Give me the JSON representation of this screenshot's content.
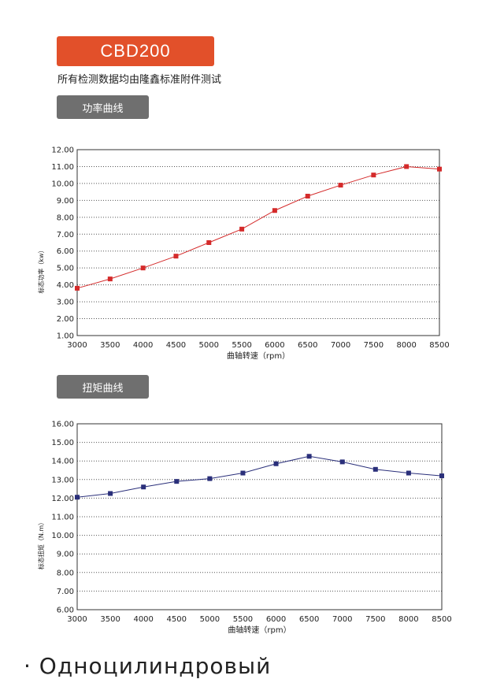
{
  "header": {
    "model": "CBD200",
    "note": "所有检测数据均由隆鑫标准附件测试"
  },
  "sections": {
    "power_label": "功率曲线",
    "torque_label": "扭矩曲线"
  },
  "footer": {
    "text": "· Одноцилиндровый"
  },
  "colors": {
    "badge": "#e2502a",
    "section": "#6f6f6f",
    "power": "#d42a2a",
    "torque": "#2a2f7a"
  },
  "chart_data": [
    {
      "type": "line",
      "xlabel": "曲轴转速（rpm）",
      "ylabel": "标态功率（kw）",
      "x": [
        3000,
        3500,
        4000,
        4500,
        5000,
        5500,
        6000,
        6500,
        7000,
        7500,
        8000,
        8500
      ],
      "series": [
        {
          "values": [
            3.8,
            4.35,
            5.0,
            5.7,
            6.5,
            7.3,
            8.4,
            9.25,
            9.9,
            10.5,
            11.0,
            10.85
          ]
        }
      ],
      "ylim": [
        1.0,
        12.0
      ],
      "xlim": [
        3000,
        8500
      ],
      "yticks": [
        "1.00",
        "2.00",
        "3.00",
        "4.00",
        "5.00",
        "6.00",
        "7.00",
        "8.00",
        "9.00",
        "10.00",
        "11.00",
        "12.00"
      ],
      "xticks": [
        "3000",
        "3500",
        "4000",
        "4500",
        "5000",
        "5500",
        "6000",
        "6500",
        "7000",
        "7500",
        "8000",
        "8500"
      ],
      "grid": "horizontal dotted"
    },
    {
      "type": "line",
      "xlabel": "曲轴转速（rpm）",
      "ylabel": "标态扭矩（N.m）",
      "x": [
        3000,
        3500,
        4000,
        4500,
        5000,
        5500,
        6000,
        6500,
        7000,
        7500,
        8000,
        8500
      ],
      "series": [
        {
          "values": [
            12.05,
            12.25,
            12.6,
            12.9,
            13.05,
            13.35,
            13.85,
            14.25,
            13.95,
            13.55,
            13.35,
            13.2
          ]
        }
      ],
      "ylim": [
        6.0,
        16.0
      ],
      "xlim": [
        3000,
        8500
      ],
      "yticks": [
        "6.00",
        "7.00",
        "8.00",
        "9.00",
        "10.00",
        "11.00",
        "12.00",
        "13.00",
        "14.00",
        "15.00",
        "16.00"
      ],
      "xticks": [
        "3000",
        "3500",
        "4000",
        "4500",
        "5000",
        "5500",
        "6000",
        "6500",
        "7000",
        "7500",
        "8000",
        "8500"
      ],
      "grid": "horizontal dotted"
    }
  ]
}
